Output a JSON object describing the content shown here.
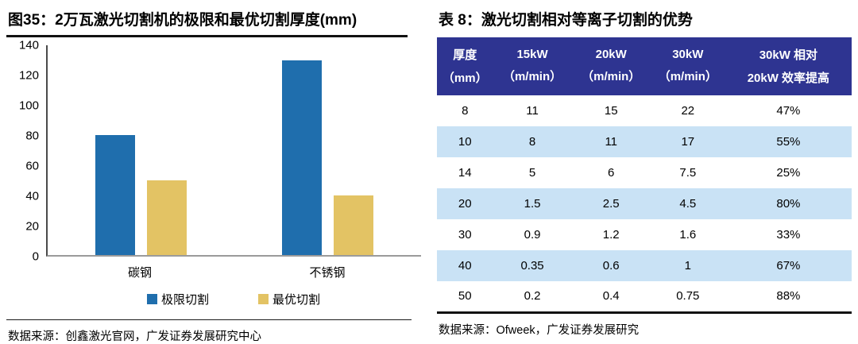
{
  "left_panel": {
    "title": "图35：2万瓦激光切割机的极限和最优切割厚度(mm)",
    "source": "数据来源：创鑫激光官网，广发证券发展研究中心"
  },
  "right_panel": {
    "title": "表 8：激光切割相对等离子切割的优势",
    "source": "数据来源：Ofweek，广发证券发展研究",
    "table": {
      "header_columns": [
        [
          "厚度",
          "（mm）"
        ],
        [
          "15kW",
          "（m/min）"
        ],
        [
          "20kW",
          "（m/min）"
        ],
        [
          "30kW",
          "（m/min）"
        ],
        [
          "30kW 相对",
          "20kW 效率提高"
        ]
      ],
      "rows": [
        [
          "8",
          "11",
          "15",
          "22",
          "47%"
        ],
        [
          "10",
          "8",
          "11",
          "17",
          "55%"
        ],
        [
          "14",
          "5",
          "6",
          "7.5",
          "25%"
        ],
        [
          "20",
          "1.5",
          "2.5",
          "4.5",
          "80%"
        ],
        [
          "30",
          "0.9",
          "1.2",
          "1.6",
          "33%"
        ],
        [
          "40",
          "0.35",
          "0.6",
          "1",
          "67%"
        ],
        [
          "50",
          "0.2",
          "0.4",
          "0.75",
          "88%"
        ]
      ],
      "header_bg": "#2E3491",
      "header_text_color": "#FFFFFF",
      "stripe_color": "#C9E2F5",
      "row_bg": "#FFFFFF"
    }
  },
  "chart_data": {
    "type": "bar",
    "title": "图35：2万瓦激光切割机的极限和最优切割厚度(mm)",
    "categories": [
      "碳钢",
      "不锈钢"
    ],
    "series": [
      {
        "name": "极限切割",
        "color": "#1F6EAD",
        "values": [
          80,
          130
        ]
      },
      {
        "name": "最优切割",
        "color": "#E3C364",
        "values": [
          50,
          40
        ]
      }
    ],
    "xlabel": "",
    "ylabel": "",
    "ylim": [
      0,
      140
    ],
    "yticks": [
      0,
      20,
      40,
      60,
      80,
      100,
      120,
      140
    ],
    "grid": false,
    "legend_position": "bottom"
  }
}
